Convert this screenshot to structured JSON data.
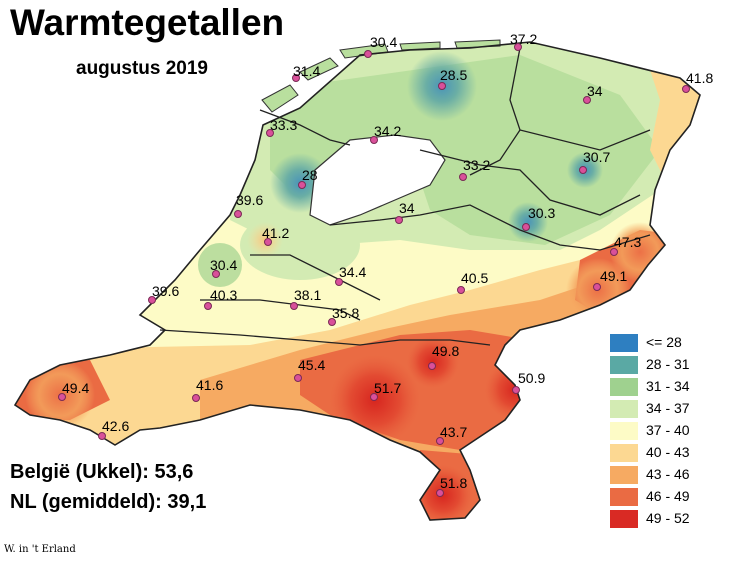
{
  "title": "Warmtegetallen",
  "subtitle": "augustus 2019",
  "stats": {
    "belgium": "België (Ukkel): 53,6",
    "nl": "NL (gemiddeld): 39,1"
  },
  "credit": "W. in 't Erland",
  "legend": [
    {
      "label": "<= 28",
      "color": "#2e7fc1"
    },
    {
      "label": "28 - 31",
      "color": "#5aa9a4"
    },
    {
      "label": "31 - 34",
      "color": "#9fd18f"
    },
    {
      "label": "34 - 37",
      "color": "#d3ebb3"
    },
    {
      "label": "37 - 40",
      "color": "#fdfbc6"
    },
    {
      "label": "40 - 43",
      "color": "#fcd892"
    },
    {
      "label": "43 - 46",
      "color": "#f6aa62"
    },
    {
      "label": "46 - 49",
      "color": "#ea6b43"
    },
    {
      "label": "49 - 52",
      "color": "#d92a24"
    }
  ],
  "stations": [
    {
      "label": "30.4"
    },
    {
      "label": "37.2"
    },
    {
      "label": "31.4"
    },
    {
      "label": "28.5"
    },
    {
      "label": "41.8"
    },
    {
      "label": "34"
    },
    {
      "label": "33.3"
    },
    {
      "label": "34.2"
    },
    {
      "label": "33.2"
    },
    {
      "label": "30.7"
    },
    {
      "label": "28"
    },
    {
      "label": "39.6"
    },
    {
      "label": "34"
    },
    {
      "label": "41.2"
    },
    {
      "label": "30.3"
    },
    {
      "label": "47.3"
    },
    {
      "label": "30.4"
    },
    {
      "label": "34.4"
    },
    {
      "label": "49.1"
    },
    {
      "label": "40.5"
    },
    {
      "label": "39.6"
    },
    {
      "label": "40.3"
    },
    {
      "label": "38.1"
    },
    {
      "label": "35.8"
    },
    {
      "label": "49.8"
    },
    {
      "label": "45.4"
    },
    {
      "label": "50.9"
    },
    {
      "label": "49.4"
    },
    {
      "label": "41.6"
    },
    {
      "label": "51.7"
    },
    {
      "label": "42.6"
    },
    {
      "label": "43.7"
    },
    {
      "label": "51.8"
    }
  ]
}
